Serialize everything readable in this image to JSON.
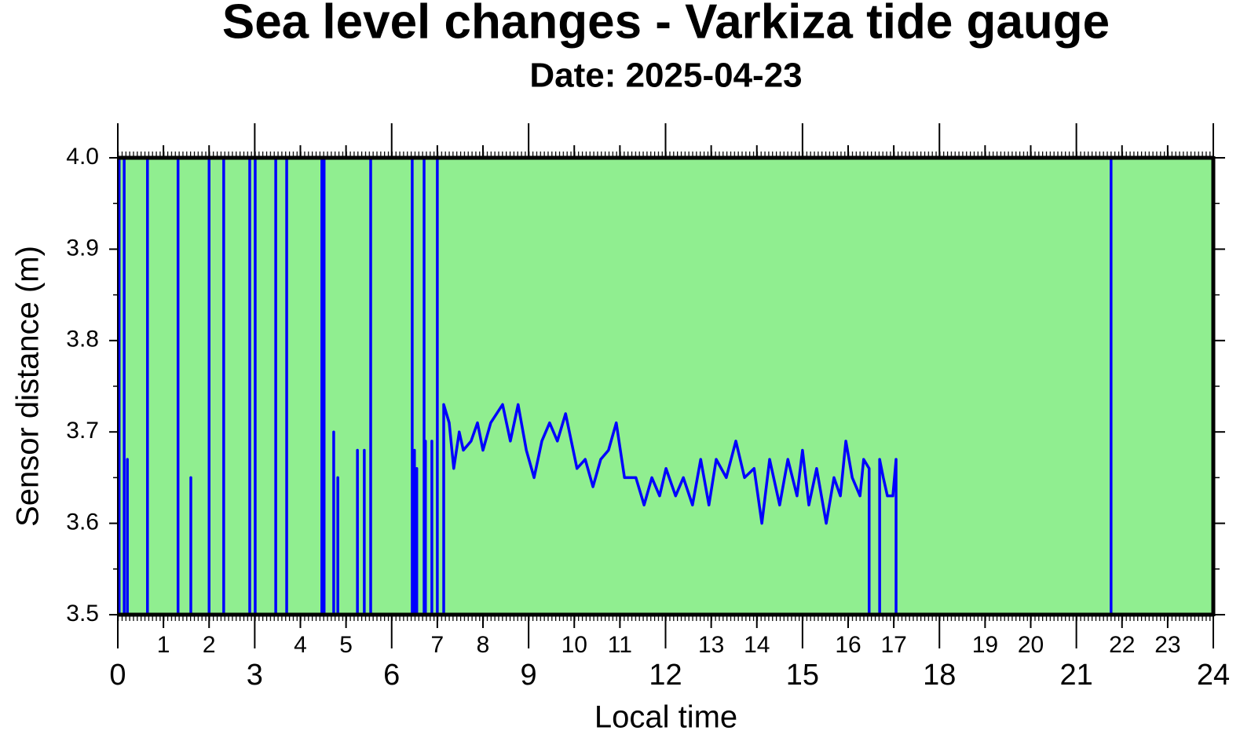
{
  "chart_data": {
    "type": "line",
    "title": "Sea level changes - Varkiza tide gauge",
    "subtitle": "Date: 2025-04-23",
    "x_label": "Local time",
    "y_label": "Sensor distance (m)",
    "xlim": [
      0,
      24
    ],
    "ylim": [
      3.5,
      4.0
    ],
    "xticks": [
      0,
      3,
      6,
      9,
      12,
      15,
      18,
      21,
      24
    ],
    "xticks_minor": [
      1,
      2,
      4,
      5,
      7,
      8,
      10,
      11,
      13,
      14,
      16,
      17,
      19,
      20,
      22,
      23
    ],
    "yticks": [
      3.5,
      3.6,
      3.7,
      3.8,
      3.9,
      {
        "value": 4,
        "label": "4.0"
      }
    ],
    "yticks_minor": [
      3.55,
      3.65,
      3.75,
      3.85,
      3.95
    ],
    "background": "#90ee90",
    "series": [
      {
        "name": "Sensor distance",
        "color": "#0000ff",
        "x": [
          0.03,
          0.03,
          0.03,
          0.14,
          0.14,
          0.14,
          0.21,
          0.21,
          0.21,
          0.65,
          0.65,
          0.65,
          1.32,
          1.32,
          1.32,
          1.6,
          1.6,
          1.6,
          2.0,
          2.0,
          2.0,
          2.32,
          2.32,
          2.32,
          2.89,
          2.89,
          2.89,
          3.01,
          3.01,
          3.01,
          3.46,
          3.46,
          3.46,
          3.7,
          3.7,
          3.7,
          4.47,
          4.47,
          4.47,
          4.52,
          4.52,
          4.52,
          4.73,
          4.73,
          4.73,
          4.82,
          4.82,
          4.82,
          5.25,
          5.25,
          5.25,
          5.4,
          5.4,
          5.4,
          5.54,
          5.54,
          5.54,
          6.45,
          6.45,
          6.45,
          6.5,
          6.5,
          6.5,
          6.55,
          6.55,
          6.55,
          6.71,
          6.71,
          6.71,
          6.74,
          6.74,
          6.74,
          6.88,
          6.88,
          6.88,
          7.0,
          7.0,
          7.0,
          7.14,
          7.14,
          7.26,
          7.36,
          7.48,
          7.57,
          7.74,
          7.88,
          8.0,
          8.17,
          8.43,
          8.6,
          8.77,
          8.95,
          9.12,
          9.29,
          9.46,
          9.63,
          9.81,
          10.06,
          10.24,
          10.41,
          10.58,
          10.75,
          10.92,
          11.1,
          11.35,
          11.53,
          11.7,
          11.87,
          12.01,
          12.22,
          12.39,
          12.59,
          12.77,
          12.95,
          13.11,
          13.33,
          13.54,
          13.73,
          13.94,
          14.11,
          14.28,
          14.5,
          14.68,
          14.88,
          15.0,
          15.14,
          15.31,
          15.52,
          15.69,
          15.83,
          15.95,
          16.09,
          16.26,
          16.34,
          16.46,
          16.46,
          16.69,
          16.69,
          16.77,
          16.86,
          16.98,
          17.05,
          17.05,
          21.76,
          21.76,
          21.76
        ],
        "values": [
          3.5,
          4.0,
          3.5,
          3.5,
          4.0,
          3.5,
          3.5,
          3.67,
          3.5,
          3.5,
          4.0,
          3.5,
          3.5,
          4.0,
          3.5,
          3.5,
          3.65,
          3.5,
          3.5,
          4.0,
          3.5,
          3.5,
          4.0,
          3.5,
          3.5,
          4.0,
          3.5,
          3.5,
          4.0,
          3.5,
          3.5,
          4.0,
          3.5,
          3.5,
          4.0,
          3.5,
          3.5,
          4.0,
          3.5,
          3.5,
          4.0,
          3.5,
          3.5,
          3.7,
          3.5,
          3.5,
          3.65,
          3.5,
          3.5,
          3.68,
          3.5,
          3.5,
          3.68,
          3.5,
          3.5,
          4.0,
          3.5,
          3.5,
          4.0,
          3.5,
          3.5,
          3.68,
          3.5,
          3.5,
          3.66,
          3.5,
          3.5,
          4.0,
          3.5,
          3.5,
          3.69,
          3.5,
          3.5,
          3.69,
          3.5,
          3.5,
          4.0,
          3.5,
          3.5,
          3.73,
          3.71,
          3.66,
          3.7,
          3.68,
          3.69,
          3.71,
          3.68,
          3.71,
          3.73,
          3.69,
          3.73,
          3.68,
          3.65,
          3.69,
          3.71,
          3.69,
          3.72,
          3.66,
          3.67,
          3.64,
          3.67,
          3.68,
          3.71,
          3.65,
          3.65,
          3.62,
          3.65,
          3.63,
          3.66,
          3.63,
          3.65,
          3.62,
          3.67,
          3.62,
          3.67,
          3.65,
          3.69,
          3.65,
          3.66,
          3.6,
          3.67,
          3.62,
          3.67,
          3.63,
          3.68,
          3.62,
          3.66,
          3.6,
          3.65,
          3.63,
          3.69,
          3.65,
          3.63,
          3.67,
          3.66,
          3.5,
          3.5,
          3.67,
          3.65,
          3.63,
          3.63,
          3.67,
          3.5,
          3.5,
          4.0,
          3.5
        ]
      }
    ]
  }
}
